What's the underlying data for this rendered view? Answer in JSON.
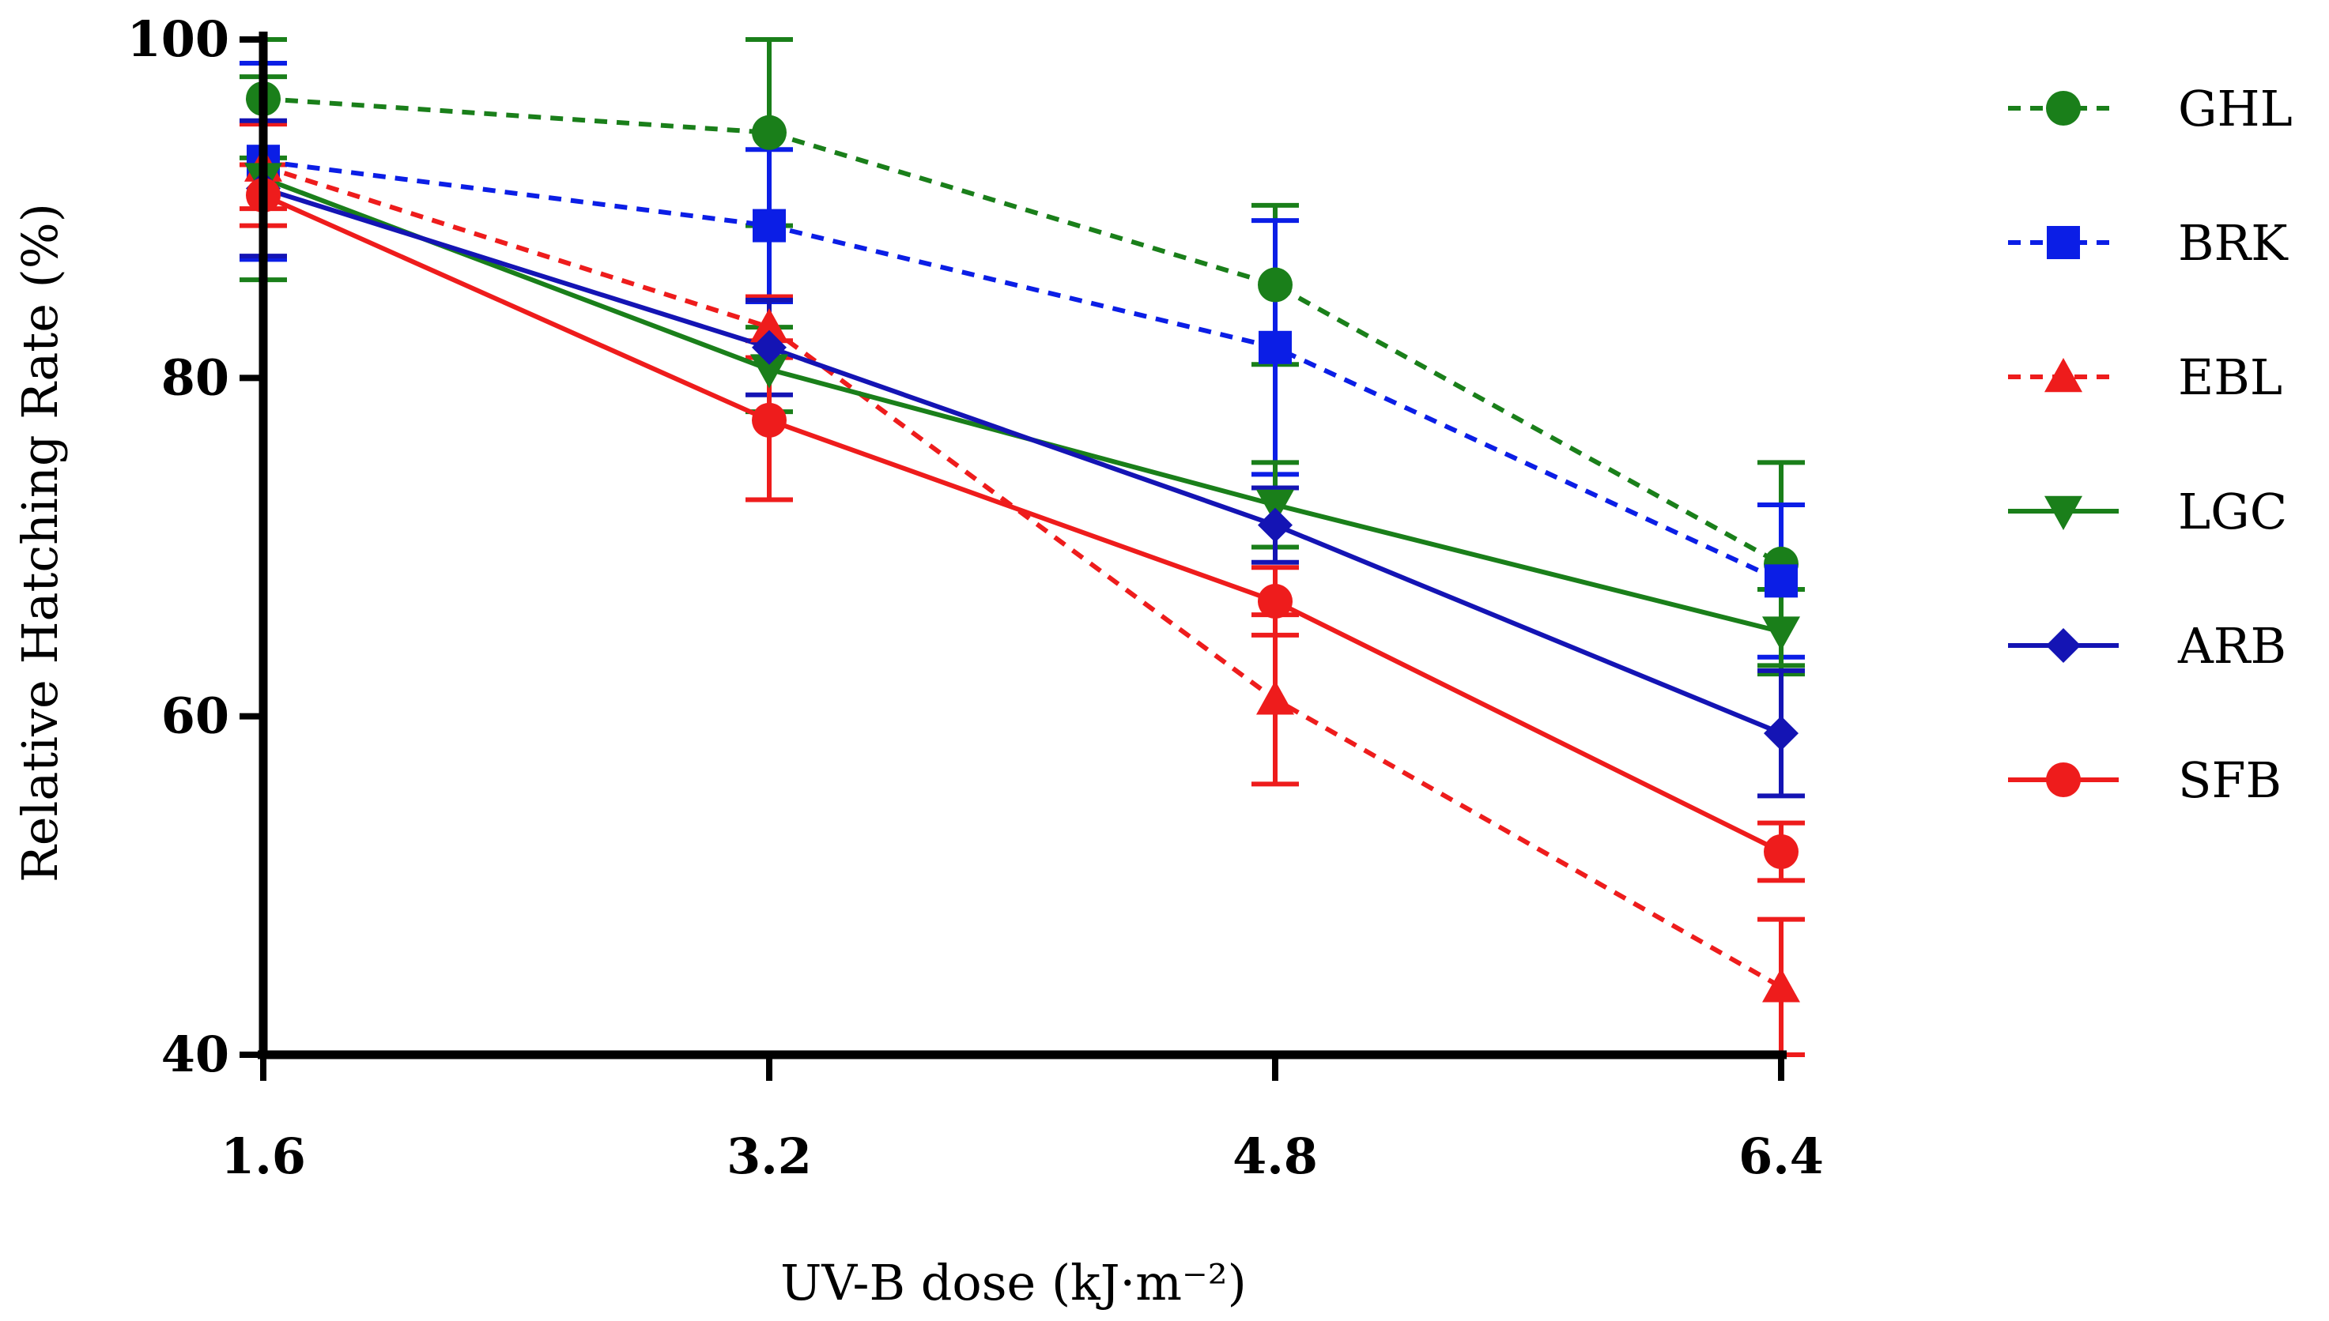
{
  "chart_data": {
    "type": "line",
    "title": "",
    "xlabel": "UV-B dose (kJ·m⁻²)",
    "ylabel": "Relative Hatching Rate (%)",
    "x": [
      1.6,
      3.2,
      4.8,
      6.4
    ],
    "x_tick_labels": [
      "1.6",
      "3.2",
      "4.8",
      "6.4"
    ],
    "y_ticks": [
      40,
      60,
      80,
      100
    ],
    "y_tick_labels": [
      "40",
      "60",
      "80",
      "100"
    ],
    "ylim": [
      40,
      100
    ],
    "grid": false,
    "legend_position": "right",
    "series": [
      {
        "name": "GHL",
        "color": "#1a7f1a",
        "style": "dashed",
        "marker": "circle",
        "values": [
          96.5,
          94.5,
          85.5,
          69.0
        ],
        "errors": [
          3.5,
          5.5,
          4.7,
          6.0
        ]
      },
      {
        "name": "BRK",
        "color": "#0b1ee6",
        "style": "dashed",
        "marker": "square",
        "values": [
          92.8,
          89.0,
          81.8,
          68.0
        ],
        "errors": [
          5.8,
          4.5,
          7.5,
          4.5
        ]
      },
      {
        "name": "EBL",
        "color": "#ee1c1c",
        "style": "dashed",
        "marker": "triangle-up",
        "values": [
          92.5,
          83.0,
          61.0,
          44.0
        ],
        "errors": [
          2.5,
          1.8,
          5.0,
          4.0
        ]
      },
      {
        "name": "LGC",
        "color": "#1a7f1a",
        "style": "solid",
        "marker": "triangle-down",
        "values": [
          91.8,
          80.5,
          72.5,
          65.0
        ],
        "errors": [
          6.0,
          2.5,
          2.5,
          2.5
        ]
      },
      {
        "name": "ARB",
        "color": "#1414b4",
        "style": "solid",
        "marker": "diamond",
        "values": [
          91.2,
          81.8,
          71.3,
          59.0
        ],
        "errors": [
          4.0,
          2.8,
          2.2,
          3.7
        ]
      },
      {
        "name": "SFB",
        "color": "#ee1c1c",
        "style": "solid",
        "marker": "circle",
        "values": [
          90.8,
          77.5,
          66.8,
          52.0
        ],
        "errors": [
          1.8,
          4.7,
          2.0,
          1.7
        ]
      }
    ]
  }
}
